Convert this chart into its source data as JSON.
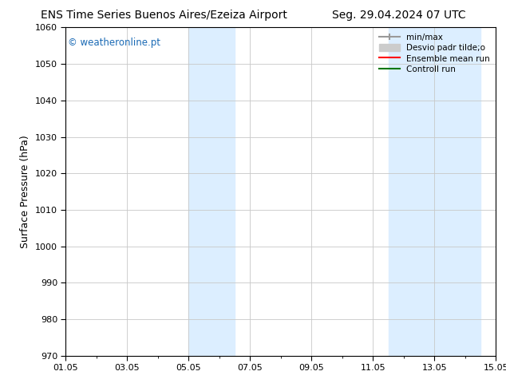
{
  "title_left": "ENS Time Series Buenos Aires/Ezeiza Airport",
  "title_right": "Seg. 29.04.2024 07 UTC",
  "ylabel": "Surface Pressure (hPa)",
  "ylim": [
    970,
    1060
  ],
  "yticks": [
    970,
    980,
    990,
    1000,
    1010,
    1020,
    1030,
    1040,
    1050,
    1060
  ],
  "xlim_start": 0.0,
  "xlim_end": 14.0,
  "xtick_positions": [
    0,
    2,
    4,
    6,
    8,
    10,
    12,
    14
  ],
  "xtick_labels": [
    "01.05",
    "03.05",
    "05.05",
    "07.05",
    "09.05",
    "11.05",
    "13.05",
    "15.05"
  ],
  "shaded_bands": [
    {
      "x_start": 4.0,
      "x_end": 5.5
    },
    {
      "x_start": 10.5,
      "x_end": 13.5
    }
  ],
  "shaded_color": "#dceeff",
  "background_color": "#ffffff",
  "grid_color": "#c8c8c8",
  "title_fontsize": 10,
  "tick_fontsize": 8,
  "ylabel_fontsize": 9,
  "watermark_text": "© weatheronline.pt",
  "watermark_color": "#1a6ab5",
  "legend_label_minmax": "min/max",
  "legend_label_desvio": "Desvio padr tilde;o",
  "legend_label_ensemble": "Ensemble mean run",
  "legend_label_controll": "Controll run",
  "legend_color_minmax": "#999999",
  "legend_color_desvio": "#cccccc",
  "legend_color_ensemble": "#ff0000",
  "legend_color_controll": "#007700"
}
